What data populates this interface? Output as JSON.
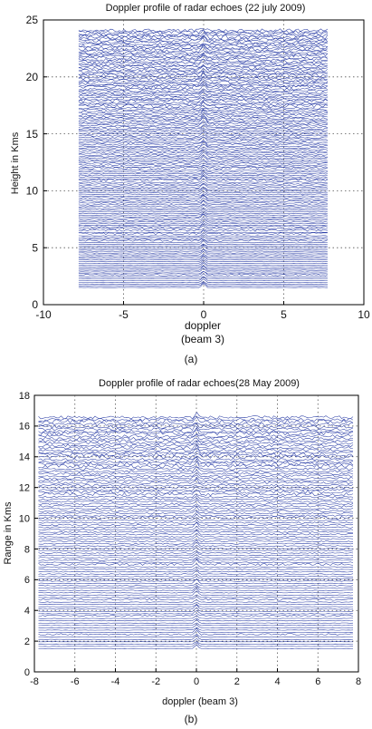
{
  "colors": {
    "trace": "#2b3ea6",
    "axis": "#000000",
    "grid": "#555555"
  },
  "chart_data": [
    {
      "type": "line",
      "panel_label": "(a)",
      "title": "Doppler profile of radar echoes (22 july 2009)",
      "xlabel": "doppler",
      "xlabel2": "(beam 3)",
      "ylabel": "Height in Kms",
      "xlim": [
        -10,
        10
      ],
      "ylim": [
        0,
        25
      ],
      "xticks": [
        -10,
        -5,
        0,
        5,
        10
      ],
      "yticks": [
        0,
        5,
        10,
        15,
        20,
        25
      ],
      "grid": true,
      "doppler_range": [
        -7.8,
        7.8
      ],
      "height_range": [
        1.5,
        24
      ],
      "profile_count": 150,
      "peak_doppler": 0
    },
    {
      "type": "line",
      "panel_label": "(b)",
      "title": "Doppler profile of radar echoes(28 May 2009)",
      "xlabel": "doppler (beam 3)",
      "xlabel2": "",
      "ylabel": "Range in Kms",
      "xlim": [
        -8,
        8
      ],
      "ylim": [
        0,
        18
      ],
      "xticks": [
        -8,
        -6,
        -4,
        -2,
        0,
        2,
        4,
        6,
        8
      ],
      "yticks": [
        0,
        2,
        4,
        6,
        8,
        10,
        12,
        14,
        16,
        18
      ],
      "grid": true,
      "doppler_range": [
        -7.8,
        7.8
      ],
      "height_range": [
        1.5,
        16.5
      ],
      "profile_count": 100,
      "peak_doppler": 0
    }
  ]
}
